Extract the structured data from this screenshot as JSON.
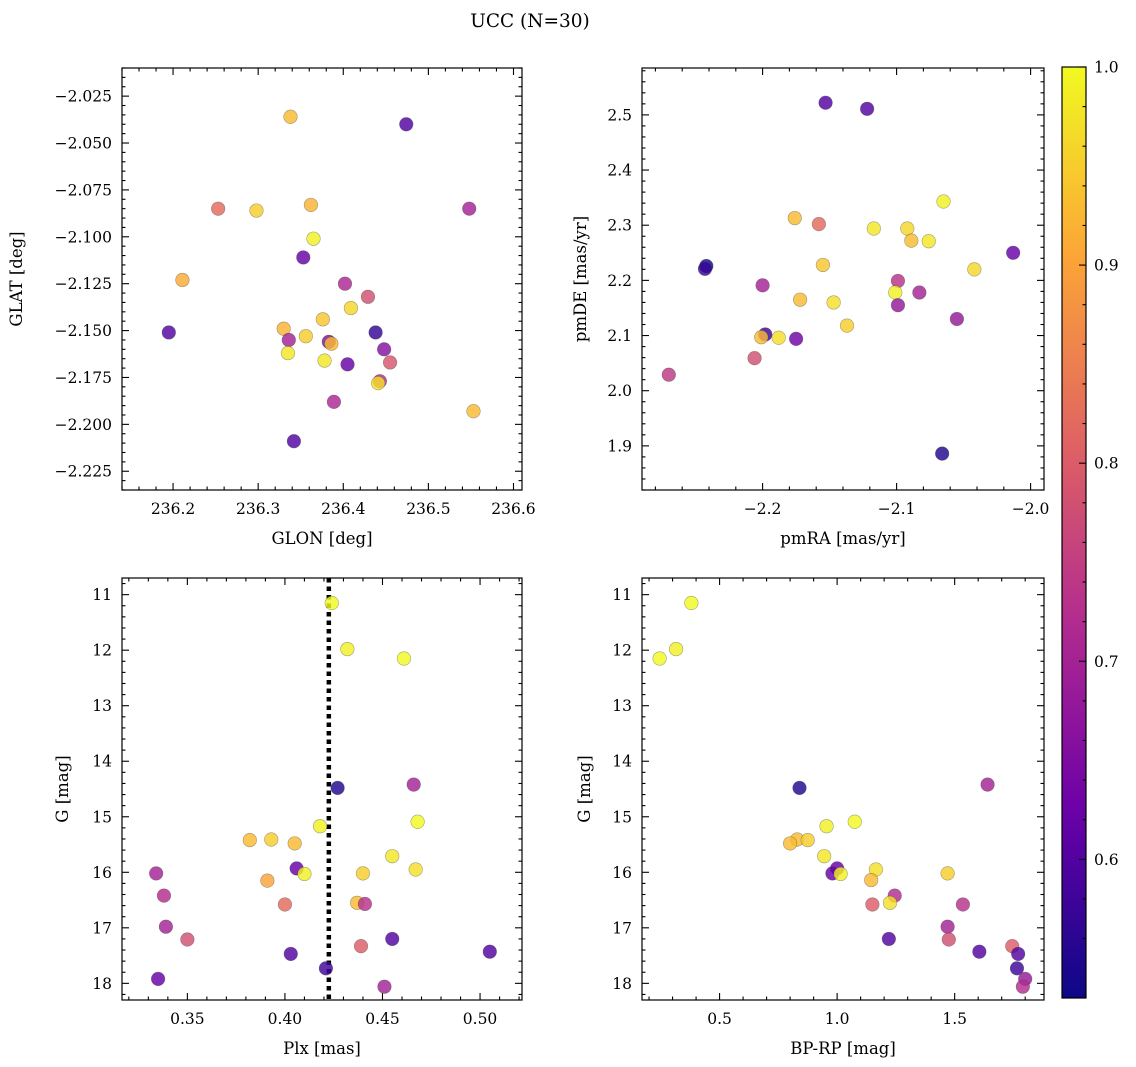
{
  "figure": {
    "title": "UCC (N=30)"
  },
  "colorbar": {
    "range": [
      0.53,
      1.0
    ],
    "ticks": [
      0.6,
      0.7,
      0.8,
      0.9,
      1.0
    ],
    "tick_labels": [
      "0.6",
      "0.7",
      "0.8",
      "0.9",
      "1.0"
    ],
    "colormap": "plasma",
    "colors": [
      "#0d0887",
      "#6a00a8",
      "#b12a90",
      "#e16462",
      "#fca636",
      "#f0f921"
    ]
  },
  "chart_data": [
    {
      "type": "scatter",
      "id": "glon-glat",
      "xlabel": "GLON [deg]",
      "ylabel": "GLAT [deg]",
      "xlim": [
        236.14,
        236.61
      ],
      "ylim": [
        -2.235,
        -2.01
      ],
      "y_inverted": false,
      "xticks": [
        236.2,
        236.3,
        236.4,
        236.5,
        236.6
      ],
      "xtick_labels": [
        "236.2",
        "236.3",
        "236.4",
        "236.5",
        "236.6"
      ],
      "yticks": [
        -2.225,
        -2.2,
        -2.175,
        -2.15,
        -2.125,
        -2.1,
        -2.075,
        -2.05,
        -2.025
      ],
      "ytick_labels": [
        "−2.225",
        "−2.200",
        "−2.175",
        "−2.150",
        "−2.125",
        "−2.100",
        "−2.075",
        "−2.050",
        "−2.025"
      ],
      "grid": false,
      "points": [
        {
          "x": 236.338,
          "y": -2.036,
          "c": 0.93
        },
        {
          "x": 236.474,
          "y": -2.04,
          "c": 0.6
        },
        {
          "x": 236.253,
          "y": -2.085,
          "c": 0.82
        },
        {
          "x": 236.298,
          "y": -2.086,
          "c": 0.95
        },
        {
          "x": 236.362,
          "y": -2.083,
          "c": 0.92
        },
        {
          "x": 236.548,
          "y": -2.085,
          "c": 0.7
        },
        {
          "x": 236.365,
          "y": -2.101,
          "c": 0.99
        },
        {
          "x": 236.353,
          "y": -2.111,
          "c": 0.62
        },
        {
          "x": 236.211,
          "y": -2.123,
          "c": 0.91
        },
        {
          "x": 236.402,
          "y": -2.125,
          "c": 0.71
        },
        {
          "x": 236.429,
          "y": -2.132,
          "c": 0.78
        },
        {
          "x": 236.409,
          "y": -2.138,
          "c": 0.96
        },
        {
          "x": 236.376,
          "y": -2.144,
          "c": 0.94
        },
        {
          "x": 236.195,
          "y": -2.151,
          "c": 0.6
        },
        {
          "x": 236.33,
          "y": -2.149,
          "c": 0.92
        },
        {
          "x": 236.438,
          "y": -2.151,
          "c": 0.57
        },
        {
          "x": 236.356,
          "y": -2.153,
          "c": 0.95
        },
        {
          "x": 236.336,
          "y": -2.155,
          "c": 0.7
        },
        {
          "x": 236.383,
          "y": -2.156,
          "c": 0.66
        },
        {
          "x": 236.386,
          "y": -2.157,
          "c": 0.93
        },
        {
          "x": 236.448,
          "y": -2.16,
          "c": 0.66
        },
        {
          "x": 236.335,
          "y": -2.162,
          "c": 0.98
        },
        {
          "x": 236.378,
          "y": -2.166,
          "c": 0.98
        },
        {
          "x": 236.405,
          "y": -2.168,
          "c": 0.62
        },
        {
          "x": 236.455,
          "y": -2.167,
          "c": 0.79
        },
        {
          "x": 236.443,
          "y": -2.177,
          "c": 0.72
        },
        {
          "x": 236.441,
          "y": -2.178,
          "c": 0.97
        },
        {
          "x": 236.389,
          "y": -2.188,
          "c": 0.71
        },
        {
          "x": 236.553,
          "y": -2.193,
          "c": 0.93
        },
        {
          "x": 236.342,
          "y": -2.209,
          "c": 0.6
        }
      ]
    },
    {
      "type": "scatter",
      "id": "pmra-pmde",
      "xlabel": "pmRA [mas/yr]",
      "ylabel": "pmDE [mas/yr]",
      "xlim": [
        -2.29,
        -1.99
      ],
      "ylim": [
        1.82,
        2.585
      ],
      "y_inverted": false,
      "xticks": [
        -2.2,
        -2.1,
        -2.0
      ],
      "xtick_labels": [
        "−2.2",
        "−2.1",
        "−2.0"
      ],
      "yticks": [
        1.9,
        2.0,
        2.1,
        2.2,
        2.3,
        2.4,
        2.5
      ],
      "ytick_labels": [
        "1.9",
        "2.0",
        "2.1",
        "2.2",
        "2.3",
        "2.4",
        "2.5"
      ],
      "grid": false,
      "points": [
        {
          "x": -2.153,
          "y": 2.522,
          "c": 0.6
        },
        {
          "x": -2.122,
          "y": 2.511,
          "c": 0.6
        },
        {
          "x": -2.065,
          "y": 2.343,
          "c": 0.99
        },
        {
          "x": -2.176,
          "y": 2.313,
          "c": 0.93
        },
        {
          "x": -2.158,
          "y": 2.302,
          "c": 0.82
        },
        {
          "x": -2.117,
          "y": 2.294,
          "c": 0.98
        },
        {
          "x": -2.092,
          "y": 2.294,
          "c": 0.96
        },
        {
          "x": -2.089,
          "y": 2.272,
          "c": 0.93
        },
        {
          "x": -2.076,
          "y": 2.271,
          "c": 0.98
        },
        {
          "x": -2.013,
          "y": 2.25,
          "c": 0.62
        },
        {
          "x": -2.155,
          "y": 2.228,
          "c": 0.94
        },
        {
          "x": -2.242,
          "y": 2.226,
          "c": 0.53
        },
        {
          "x": -2.243,
          "y": 2.221,
          "c": 0.57
        },
        {
          "x": -2.042,
          "y": 2.22,
          "c": 0.96
        },
        {
          "x": -2.099,
          "y": 2.199,
          "c": 0.73
        },
        {
          "x": -2.2,
          "y": 2.191,
          "c": 0.7
        },
        {
          "x": -2.083,
          "y": 2.178,
          "c": 0.7
        },
        {
          "x": -2.101,
          "y": 2.178,
          "c": 0.99
        },
        {
          "x": -2.172,
          "y": 2.165,
          "c": 0.93
        },
        {
          "x": -2.147,
          "y": 2.16,
          "c": 0.97
        },
        {
          "x": -2.099,
          "y": 2.155,
          "c": 0.68
        },
        {
          "x": -2.055,
          "y": 2.13,
          "c": 0.68
        },
        {
          "x": -2.137,
          "y": 2.118,
          "c": 0.95
        },
        {
          "x": -2.198,
          "y": 2.102,
          "c": 0.58
        },
        {
          "x": -2.201,
          "y": 2.097,
          "c": 0.93
        },
        {
          "x": -2.188,
          "y": 2.096,
          "c": 0.97
        },
        {
          "x": -2.175,
          "y": 2.094,
          "c": 0.63
        },
        {
          "x": -2.206,
          "y": 2.059,
          "c": 0.78
        },
        {
          "x": -2.27,
          "y": 2.029,
          "c": 0.74
        },
        {
          "x": -2.066,
          "y": 1.886,
          "c": 0.55
        }
      ]
    },
    {
      "type": "scatter",
      "id": "plx-g",
      "xlabel": "Plx [mas]",
      "ylabel": "G [mag]",
      "xlim": [
        0.3165,
        0.5215
      ],
      "ylim": [
        18.3,
        10.7
      ],
      "y_inverted": true,
      "xticks": [
        0.35,
        0.4,
        0.45,
        0.5
      ],
      "xtick_labels": [
        "0.35",
        "0.40",
        "0.45",
        "0.50"
      ],
      "yticks": [
        11,
        12,
        13,
        14,
        15,
        16,
        17,
        18
      ],
      "ytick_labels": [
        "11",
        "12",
        "13",
        "14",
        "15",
        "16",
        "17",
        "18"
      ],
      "grid": false,
      "vline": {
        "x": 0.4225,
        "style": "dotted"
      },
      "points": [
        {
          "x": 0.424,
          "y": 11.15,
          "c": 1.0
        },
        {
          "x": 0.432,
          "y": 11.98,
          "c": 0.99
        },
        {
          "x": 0.461,
          "y": 12.15,
          "c": 1.0
        },
        {
          "x": 0.466,
          "y": 14.42,
          "c": 0.7
        },
        {
          "x": 0.427,
          "y": 14.48,
          "c": 0.55
        },
        {
          "x": 0.468,
          "y": 15.09,
          "c": 1.0
        },
        {
          "x": 0.418,
          "y": 15.17,
          "c": 0.99
        },
        {
          "x": 0.382,
          "y": 15.42,
          "c": 0.93
        },
        {
          "x": 0.393,
          "y": 15.41,
          "c": 0.95
        },
        {
          "x": 0.405,
          "y": 15.48,
          "c": 0.93
        },
        {
          "x": 0.455,
          "y": 15.71,
          "c": 0.98
        },
        {
          "x": 0.406,
          "y": 15.93,
          "c": 0.62
        },
        {
          "x": 0.467,
          "y": 15.95,
          "c": 0.97
        },
        {
          "x": 0.334,
          "y": 16.02,
          "c": 0.7
        },
        {
          "x": 0.41,
          "y": 16.03,
          "c": 0.99
        },
        {
          "x": 0.44,
          "y": 16.02,
          "c": 0.95
        },
        {
          "x": 0.391,
          "y": 16.15,
          "c": 0.9
        },
        {
          "x": 0.338,
          "y": 16.42,
          "c": 0.72
        },
        {
          "x": 0.4,
          "y": 16.58,
          "c": 0.82
        },
        {
          "x": 0.437,
          "y": 16.55,
          "c": 0.93
        },
        {
          "x": 0.441,
          "y": 16.57,
          "c": 0.73
        },
        {
          "x": 0.339,
          "y": 16.98,
          "c": 0.7
        },
        {
          "x": 0.35,
          "y": 17.21,
          "c": 0.78
        },
        {
          "x": 0.455,
          "y": 17.2,
          "c": 0.6
        },
        {
          "x": 0.439,
          "y": 17.33,
          "c": 0.8
        },
        {
          "x": 0.403,
          "y": 17.47,
          "c": 0.6
        },
        {
          "x": 0.505,
          "y": 17.43,
          "c": 0.6
        },
        {
          "x": 0.421,
          "y": 17.73,
          "c": 0.58
        },
        {
          "x": 0.335,
          "y": 17.92,
          "c": 0.62
        },
        {
          "x": 0.451,
          "y": 18.06,
          "c": 0.7
        }
      ]
    },
    {
      "type": "scatter",
      "id": "bprp-g",
      "xlabel": "BP-RP [mag]",
      "ylabel": "G [mag]",
      "xlim": [
        0.17,
        1.88
      ],
      "ylim": [
        18.3,
        10.7
      ],
      "y_inverted": true,
      "xticks": [
        0.5,
        1.0,
        1.5
      ],
      "xtick_labels": [
        "0.5",
        "1.0",
        "1.5"
      ],
      "yticks": [
        11,
        12,
        13,
        14,
        15,
        16,
        17,
        18
      ],
      "ytick_labels": [
        "11",
        "12",
        "13",
        "14",
        "15",
        "16",
        "17",
        "18"
      ],
      "grid": false,
      "points": [
        {
          "x": 0.38,
          "y": 11.15,
          "c": 1.0
        },
        {
          "x": 0.315,
          "y": 11.98,
          "c": 0.99
        },
        {
          "x": 0.245,
          "y": 12.15,
          "c": 1.0
        },
        {
          "x": 1.64,
          "y": 14.42,
          "c": 0.7
        },
        {
          "x": 0.84,
          "y": 14.48,
          "c": 0.55
        },
        {
          "x": 1.075,
          "y": 15.09,
          "c": 1.0
        },
        {
          "x": 0.955,
          "y": 15.17,
          "c": 0.99
        },
        {
          "x": 0.83,
          "y": 15.41,
          "c": 0.93
        },
        {
          "x": 0.875,
          "y": 15.42,
          "c": 0.95
        },
        {
          "x": 0.8,
          "y": 15.48,
          "c": 0.93
        },
        {
          "x": 0.945,
          "y": 15.71,
          "c": 0.98
        },
        {
          "x": 1.0,
          "y": 15.93,
          "c": 0.62
        },
        {
          "x": 1.165,
          "y": 15.95,
          "c": 0.97
        },
        {
          "x": 0.98,
          "y": 16.02,
          "c": 0.62
        },
        {
          "x": 1.015,
          "y": 16.03,
          "c": 0.99
        },
        {
          "x": 1.47,
          "y": 16.02,
          "c": 0.95
        },
        {
          "x": 1.145,
          "y": 16.14,
          "c": 0.93
        },
        {
          "x": 1.245,
          "y": 16.42,
          "c": 0.72
        },
        {
          "x": 1.15,
          "y": 16.58,
          "c": 0.8
        },
        {
          "x": 1.225,
          "y": 16.55,
          "c": 0.97
        },
        {
          "x": 1.535,
          "y": 16.58,
          "c": 0.73
        },
        {
          "x": 1.47,
          "y": 16.98,
          "c": 0.7
        },
        {
          "x": 1.475,
          "y": 17.21,
          "c": 0.78
        },
        {
          "x": 1.22,
          "y": 17.2,
          "c": 0.6
        },
        {
          "x": 1.745,
          "y": 17.33,
          "c": 0.8
        },
        {
          "x": 1.605,
          "y": 17.43,
          "c": 0.6
        },
        {
          "x": 1.77,
          "y": 17.47,
          "c": 0.6
        },
        {
          "x": 1.765,
          "y": 17.73,
          "c": 0.58
        },
        {
          "x": 1.8,
          "y": 17.92,
          "c": 0.68
        },
        {
          "x": 1.79,
          "y": 18.06,
          "c": 0.72
        }
      ]
    }
  ]
}
